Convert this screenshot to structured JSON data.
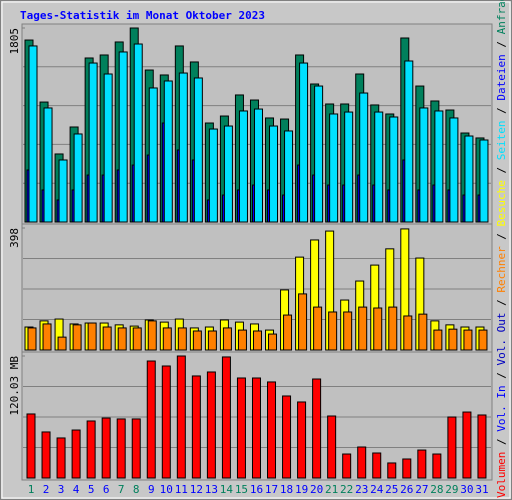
{
  "title": "Tages-Statistik im Monat Oktober 2023",
  "chart_data": [
    {
      "type": "bar",
      "ylim": [
        0,
        1805
      ],
      "yticks": [
        1805
      ],
      "series": [
        {
          "name": "Anfragen",
          "color": "#00805c",
          "values": [
            1693,
            1116,
            633,
            884,
            1526,
            1554,
            1675,
            1805,
            1414,
            1368,
            1638,
            1489,
            921,
            986,
            1182,
            1135,
            968,
            958,
            1554,
            1284,
            1098,
            1098,
            1377,
            1089,
            1005,
            1712,
            1265,
            1126,
            1042,
            828,
            782
          ]
        },
        {
          "name": "Dateien",
          "color": "#0000ff",
          "values": [
            484,
            298,
            205,
            298,
            437,
            437,
            484,
            530,
            623,
            921,
            670,
            577,
            205,
            251,
            298,
            344,
            298,
            251,
            530,
            437,
            344,
            344,
            437,
            344,
            298,
            577,
            298,
            344,
            298,
            251,
            251
          ]
        },
        {
          "name": "Seiten",
          "color": "#00e0ff",
          "values": [
            1638,
            1061,
            577,
            819,
            1479,
            1377,
            1582,
            1656,
            1247,
            1312,
            1386,
            1340,
            865,
            893,
            1033,
            1051,
            893,
            847,
            1479,
            1265,
            1005,
            1023,
            1200,
            1023,
            977,
            1498,
            1061,
            1033,
            968,
            800,
            763
          ]
        }
      ]
    },
    {
      "type": "bar",
      "ylim": [
        0,
        398
      ],
      "yticks": [
        398
      ],
      "series": [
        {
          "name": "Besuche",
          "color": "#ffff00",
          "values": [
            75,
            95,
            101,
            85,
            88,
            88,
            82,
            78,
            98,
            91,
            101,
            72,
            75,
            98,
            91,
            85,
            65,
            196,
            303,
            359,
            388,
            163,
            225,
            277,
            330,
            395,
            300,
            95,
            82,
            75,
            75
          ]
        },
        {
          "name": "Rechner",
          "color": "#ff8000",
          "values": [
            72,
            85,
            42,
            82,
            88,
            75,
            72,
            72,
            95,
            72,
            72,
            62,
            62,
            72,
            65,
            62,
            52,
            114,
            183,
            140,
            124,
            124,
            140,
            137,
            140,
            111,
            117,
            65,
            68,
            65,
            65
          ]
        }
      ]
    },
    {
      "type": "bar",
      "ylim": [
        0,
        120.03
      ],
      "yticks": [
        {
          "value": 120.03,
          "label": "120.03 MB"
        }
      ],
      "categories": [
        "1",
        "2",
        "3",
        "4",
        "5",
        "6",
        "7",
        "8",
        "9",
        "10",
        "11",
        "12",
        "13",
        "14",
        "15",
        "16",
        "17",
        "18",
        "19",
        "20",
        "21",
        "22",
        "23",
        "24",
        "25",
        "26",
        "27",
        "28",
        "29",
        "30",
        "31"
      ],
      "category_colors": [
        "#00805c",
        "#0000ff",
        "#0000ff",
        "#0000ff",
        "#0000ff",
        "#0000ff",
        "#00805c",
        "#00805c",
        "#0000ff",
        "#0000ff",
        "#0000ff",
        "#0000ff",
        "#0000ff",
        "#00805c",
        "#00805c",
        "#0000ff",
        "#0000ff",
        "#0000ff",
        "#0000ff",
        "#0000ff",
        "#00805c",
        "#00805c",
        "#0000ff",
        "#0000ff",
        "#0000ff",
        "#0000ff",
        "#0000ff",
        "#00805c",
        "#00805c",
        "#0000ff",
        "#0000ff"
      ],
      "series": [
        {
          "name": "Volumen",
          "color": "#ff0000",
          "values": [
            63,
            45.3,
            39.4,
            47.2,
            56.1,
            59,
            58.1,
            58.1,
            115.1,
            110.2,
            120.03,
            100.4,
            104.3,
            119.1,
            98.4,
            98.4,
            94.5,
            80.7,
            74.8,
            97.4,
            61,
            23.6,
            30.5,
            24.6,
            14.8,
            18.7,
            27.5,
            23.6,
            60,
            64.9,
            62
          ]
        },
        {
          "name": "Vol. In",
          "color": "#0000ff",
          "values": [
            null,
            null,
            null,
            null,
            null,
            null,
            null,
            null,
            null,
            null,
            null,
            null,
            null,
            null,
            null,
            null,
            null,
            null,
            null,
            null,
            null,
            null,
            null,
            null,
            null,
            null,
            null,
            null,
            null,
            null,
            null
          ]
        },
        {
          "name": "Vol. Out",
          "color": "#0000c0",
          "values": [
            null,
            null,
            null,
            null,
            null,
            null,
            null,
            null,
            null,
            null,
            null,
            null,
            null,
            null,
            null,
            null,
            null,
            null,
            null,
            null,
            null,
            null,
            null,
            null,
            null,
            null,
            null,
            null,
            null,
            null,
            null
          ]
        }
      ]
    }
  ]
}
